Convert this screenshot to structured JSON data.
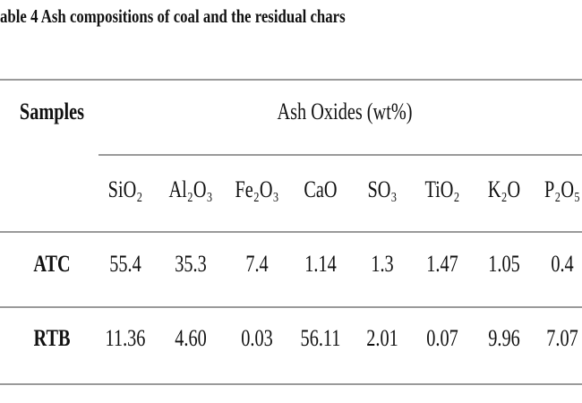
{
  "title": "able 4 Ash compositions of coal and the residual chars",
  "table": {
    "header": {
      "samples": "Samples",
      "group": "Ash Oxides (wt%)",
      "columns": [
        "SiO₂",
        "Al₂O₃",
        "Fe₂O₃",
        "CaO",
        "SO₃",
        "TiO₂",
        "K₂O",
        "P₂O₅"
      ]
    },
    "rows": [
      {
        "sample": "ATC",
        "values": [
          "55.4",
          "35.3",
          "7.4",
          "1.14",
          "1.3",
          "1.47",
          "1.05",
          "0.4"
        ]
      },
      {
        "sample": "RTB",
        "values": [
          "11.36",
          "4.60",
          "0.03",
          "56.11",
          "2.01",
          "0.07",
          "9.96",
          "7.07"
        ]
      }
    ]
  }
}
